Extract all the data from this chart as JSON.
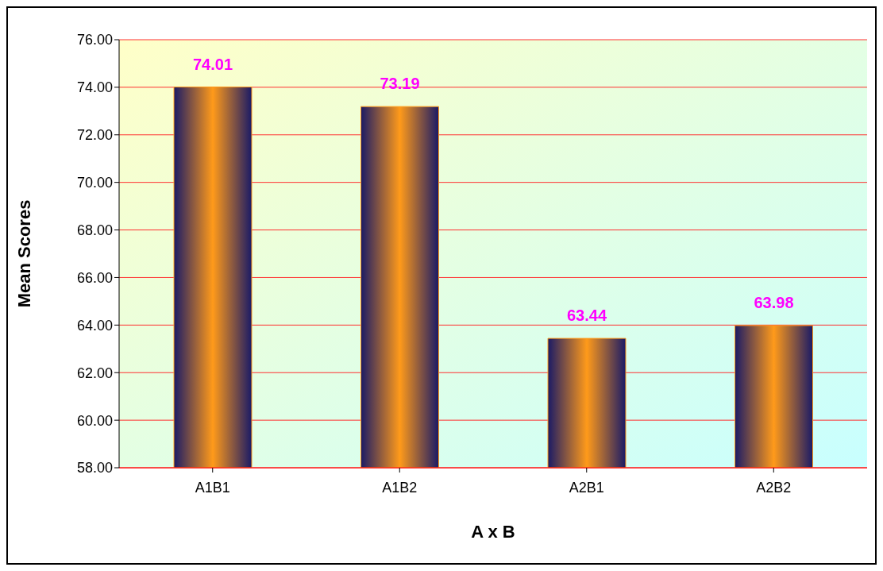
{
  "chart_data": {
    "type": "bar",
    "xlabel": "A x B",
    "ylabel": "Mean Scores",
    "categories": [
      "A1B1",
      "A1B2",
      "A2B1",
      "A2B2"
    ],
    "values": [
      74.01,
      73.19,
      63.44,
      63.98
    ],
    "color": "#ff9a1a",
    "ylim": [
      58,
      76
    ],
    "yticks": [
      {
        "value": 58,
        "label": "58.00"
      },
      {
        "value": 60,
        "label": "60.00"
      },
      {
        "value": 62,
        "label": "62.00"
      },
      {
        "value": 64,
        "label": "64.00"
      },
      {
        "value": 66,
        "label": "66.00"
      },
      {
        "value": 68,
        "label": "68.00"
      },
      {
        "value": 70,
        "label": "70.00"
      },
      {
        "value": 72,
        "label": "72.00"
      },
      {
        "value": 74,
        "label": "74.00"
      },
      {
        "value": 76,
        "label": "76.00"
      }
    ],
    "grid": "y",
    "data_labels": true
  }
}
